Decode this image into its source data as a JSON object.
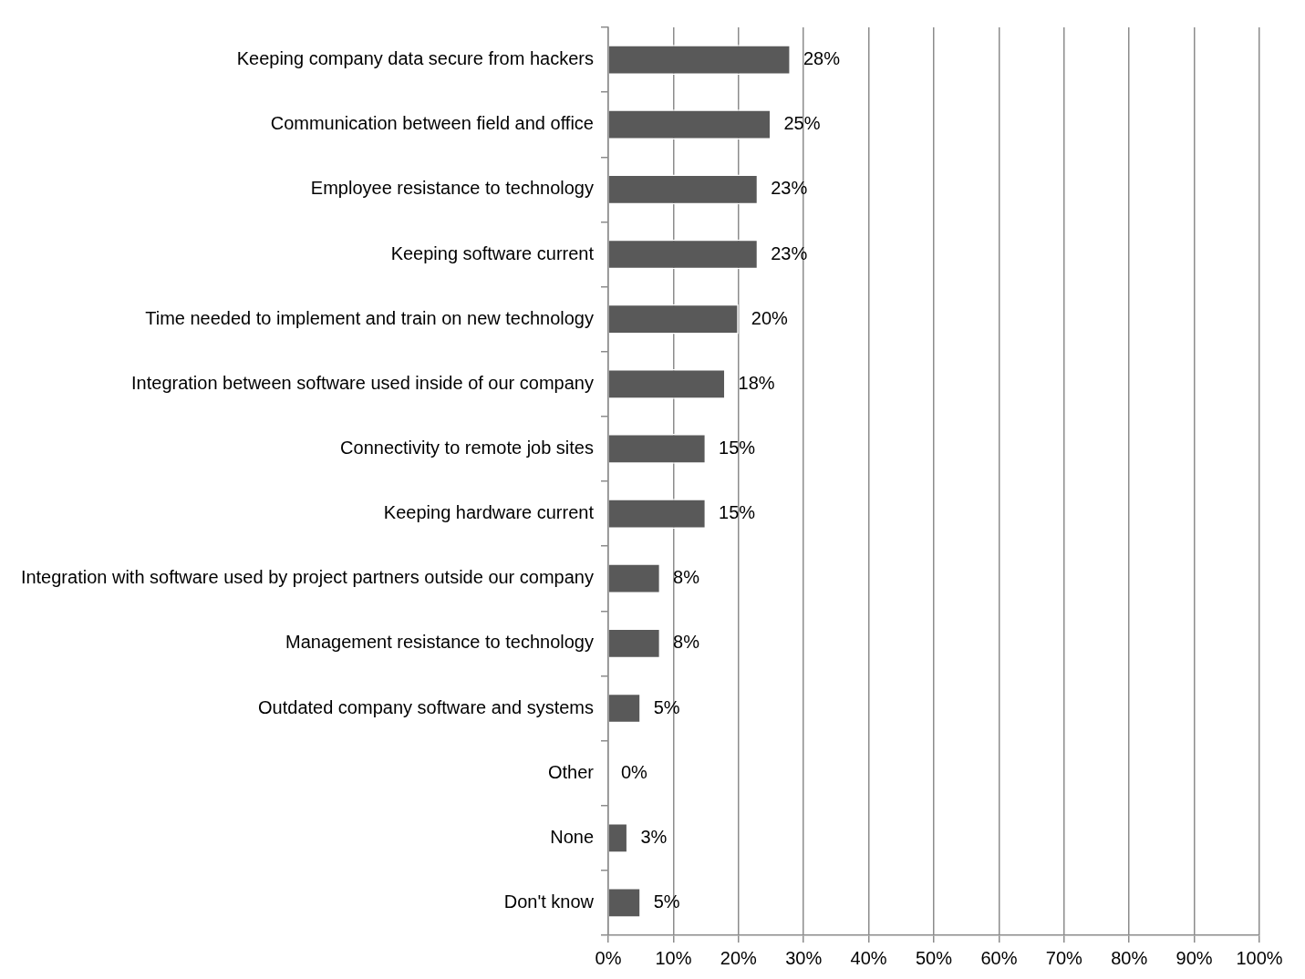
{
  "chart_data": {
    "type": "bar",
    "orientation": "horizontal",
    "categories": [
      "Keeping company data secure from hackers",
      "Communication between field and office",
      "Employee resistance to technology",
      "Keeping software current",
      "Time needed to implement and train on new technology",
      "Integration between software used inside of our company",
      "Connectivity to remote job sites",
      "Keeping hardware current",
      "Integration with software used by project partners outside our company",
      "Management resistance to technology",
      "Outdated company software and systems",
      "Other",
      "None",
      "Don't know"
    ],
    "values": [
      28,
      25,
      23,
      23,
      20,
      18,
      15,
      15,
      8,
      8,
      5,
      0,
      3,
      5
    ],
    "value_labels": [
      "28%",
      "25%",
      "23%",
      "23%",
      "20%",
      "18%",
      "15%",
      "15%",
      "8%",
      "8%",
      "5%",
      "0%",
      "3%",
      "5%"
    ],
    "color": "#595959",
    "xlim": [
      0,
      100
    ],
    "xticks": [
      {
        "value": 0,
        "label": "0%"
      },
      {
        "value": 10,
        "label": "10%"
      },
      {
        "value": 20,
        "label": "20%"
      },
      {
        "value": 30,
        "label": "30%"
      },
      {
        "value": 40,
        "label": "40%"
      },
      {
        "value": 50,
        "label": "50%"
      },
      {
        "value": 60,
        "label": "60%"
      },
      {
        "value": 70,
        "label": "70%"
      },
      {
        "value": 80,
        "label": "80%"
      },
      {
        "value": 90,
        "label": "90%"
      },
      {
        "value": 100,
        "label": "100%"
      }
    ],
    "grid": "x",
    "legend": false
  }
}
